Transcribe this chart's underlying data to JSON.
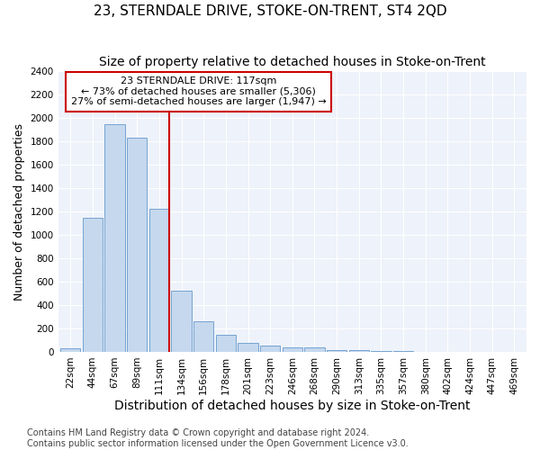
{
  "title": "23, STERNDALE DRIVE, STOKE-ON-TRENT, ST4 2QD",
  "subtitle": "Size of property relative to detached houses in Stoke-on-Trent",
  "xlabel": "Distribution of detached houses by size in Stoke-on-Trent",
  "ylabel": "Number of detached properties",
  "categories": [
    "22sqm",
    "44sqm",
    "67sqm",
    "89sqm",
    "111sqm",
    "134sqm",
    "156sqm",
    "178sqm",
    "201sqm",
    "223sqm",
    "246sqm",
    "268sqm",
    "290sqm",
    "313sqm",
    "335sqm",
    "357sqm",
    "380sqm",
    "402sqm",
    "424sqm",
    "447sqm",
    "469sqm"
  ],
  "values": [
    30,
    1150,
    1950,
    1830,
    1220,
    520,
    265,
    145,
    80,
    50,
    40,
    35,
    12,
    12,
    5,
    5,
    3,
    3,
    2,
    2,
    2
  ],
  "bar_color": "#c5d8ee",
  "bar_edge_color": "#6699cc",
  "annotation_label": "23 STERNDALE DRIVE: 117sqm",
  "annotation_line1": "← 73% of detached houses are smaller (5,306)",
  "annotation_line2": "27% of semi-detached houses are larger (1,947) →",
  "annotation_box_color": "#ffffff",
  "annotation_box_edge_color": "#cc0000",
  "vline_color": "#cc0000",
  "ylim": [
    0,
    2400
  ],
  "yticks": [
    0,
    200,
    400,
    600,
    800,
    1000,
    1200,
    1400,
    1600,
    1800,
    2000,
    2200,
    2400
  ],
  "footer1": "Contains HM Land Registry data © Crown copyright and database right 2024.",
  "footer2": "Contains public sector information licensed under the Open Government Licence v3.0.",
  "title_fontsize": 11,
  "subtitle_fontsize": 10,
  "xlabel_fontsize": 10,
  "ylabel_fontsize": 9,
  "tick_fontsize": 7.5,
  "annotation_fontsize": 8,
  "footer_fontsize": 7,
  "background_color": "#eef2fa",
  "grid_color": "#ffffff",
  "fig_background": "#ffffff"
}
